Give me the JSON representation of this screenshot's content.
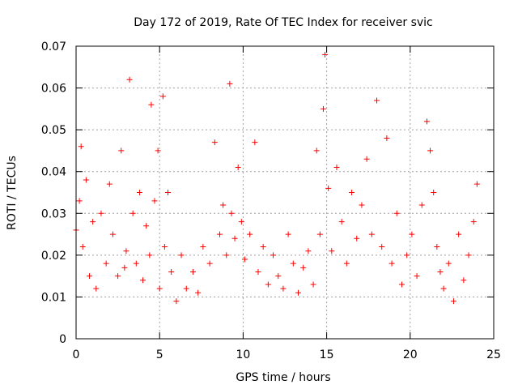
{
  "chart_data": {
    "type": "scatter",
    "title": "Day 172 of 2019, Rate Of TEC Index for receiver svic",
    "xlabel": "GPS time / hours",
    "ylabel": "ROTI / TECUs",
    "xlim": [
      0,
      25
    ],
    "ylim": [
      0,
      0.07
    ],
    "x_ticks": [
      0,
      5,
      10,
      15,
      20,
      25
    ],
    "x_tick_labels": [
      "0",
      "5",
      "10",
      "15",
      "20",
      "25"
    ],
    "y_ticks": [
      0,
      0.01,
      0.02,
      0.03,
      0.04,
      0.05,
      0.06,
      0.07
    ],
    "y_tick_labels": [
      "0",
      "0.01",
      "0.02",
      "0.03",
      "0.04",
      "0.05",
      "0.06",
      "0.07"
    ],
    "grid": true,
    "marker": "plus",
    "color": "#ff0000",
    "series": [
      {
        "name": "ROTI",
        "x": [
          0.0,
          0.2,
          0.3,
          0.4,
          0.6,
          0.8,
          1.0,
          1.2,
          1.5,
          1.8,
          2.0,
          2.2,
          2.5,
          2.7,
          2.9,
          3.0,
          3.2,
          3.4,
          3.6,
          3.8,
          4.0,
          4.2,
          4.4,
          4.5,
          4.7,
          4.9,
          5.0,
          5.2,
          5.3,
          5.5,
          5.7,
          6.0,
          6.3,
          6.6,
          7.0,
          7.3,
          7.6,
          8.0,
          8.3,
          8.6,
          8.8,
          9.0,
          9.2,
          9.3,
          9.5,
          9.7,
          9.9,
          10.1,
          10.4,
          10.7,
          10.9,
          11.2,
          11.5,
          11.8,
          12.1,
          12.4,
          12.7,
          13.0,
          13.3,
          13.6,
          13.9,
          14.2,
          14.4,
          14.6,
          14.8,
          14.9,
          15.1,
          15.3,
          15.6,
          15.9,
          16.2,
          16.5,
          16.8,
          17.1,
          17.4,
          17.7,
          18.0,
          18.3,
          18.6,
          18.9,
          19.2,
          19.5,
          19.8,
          20.1,
          20.4,
          20.7,
          21.0,
          21.2,
          21.4,
          21.6,
          21.8,
          22.0,
          22.3,
          22.6,
          22.9,
          23.2,
          23.5,
          23.8,
          24.0
        ],
        "y": [
          0.026,
          0.033,
          0.046,
          0.022,
          0.038,
          0.015,
          0.028,
          0.012,
          0.03,
          0.018,
          0.037,
          0.025,
          0.015,
          0.045,
          0.017,
          0.021,
          0.062,
          0.03,
          0.018,
          0.035,
          0.014,
          0.027,
          0.02,
          0.056,
          0.033,
          0.045,
          0.012,
          0.058,
          0.022,
          0.035,
          0.016,
          0.009,
          0.02,
          0.012,
          0.016,
          0.011,
          0.022,
          0.018,
          0.047,
          0.025,
          0.032,
          0.02,
          0.061,
          0.03,
          0.024,
          0.041,
          0.028,
          0.019,
          0.025,
          0.047,
          0.016,
          0.022,
          0.013,
          0.02,
          0.015,
          0.012,
          0.025,
          0.018,
          0.011,
          0.017,
          0.021,
          0.013,
          0.045,
          0.025,
          0.055,
          0.068,
          0.036,
          0.021,
          0.041,
          0.028,
          0.018,
          0.035,
          0.024,
          0.032,
          0.043,
          0.025,
          0.057,
          0.022,
          0.048,
          0.018,
          0.03,
          0.013,
          0.02,
          0.025,
          0.015,
          0.032,
          0.052,
          0.045,
          0.035,
          0.022,
          0.016,
          0.012,
          0.018,
          0.009,
          0.025,
          0.014,
          0.02,
          0.028,
          0.037
        ]
      }
    ]
  }
}
